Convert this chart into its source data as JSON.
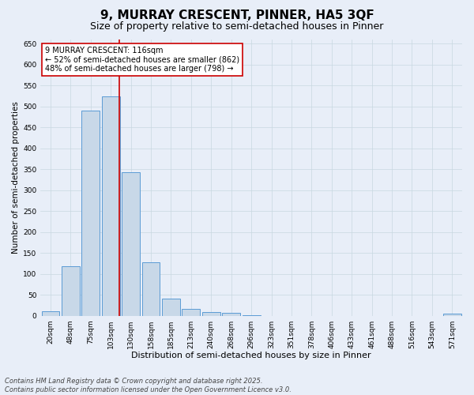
{
  "title": "9, MURRAY CRESCENT, PINNER, HA5 3QF",
  "subtitle": "Size of property relative to semi-detached houses in Pinner",
  "xlabel": "Distribution of semi-detached houses by size in Pinner",
  "ylabel": "Number of semi-detached properties",
  "categories": [
    "20sqm",
    "48sqm",
    "75sqm",
    "103sqm",
    "130sqm",
    "158sqm",
    "185sqm",
    "213sqm",
    "240sqm",
    "268sqm",
    "296sqm",
    "323sqm",
    "351sqm",
    "378sqm",
    "406sqm",
    "433sqm",
    "461sqm",
    "488sqm",
    "516sqm",
    "543sqm",
    "571sqm"
  ],
  "values": [
    10,
    118,
    490,
    525,
    343,
    128,
    40,
    16,
    8,
    7,
    2,
    0,
    0,
    0,
    0,
    0,
    0,
    0,
    0,
    0,
    4
  ],
  "bar_color": "#c8d8e8",
  "bar_edge_color": "#5b9bd5",
  "grid_color": "#c8d8e0",
  "background_color": "#e8eef8",
  "fig_background_color": "#e8eef8",
  "annotation_text": "9 MURRAY CRESCENT: 116sqm\n← 52% of semi-detached houses are smaller (862)\n48% of semi-detached houses are larger (798) →",
  "vline_x": 3.42,
  "vline_color": "#cc0000",
  "annotation_box_facecolor": "#ffffff",
  "annotation_box_edgecolor": "#cc0000",
  "footer_text": "Contains HM Land Registry data © Crown copyright and database right 2025.\nContains public sector information licensed under the Open Government Licence v3.0.",
  "ylim": [
    0,
    660
  ],
  "yticks": [
    0,
    50,
    100,
    150,
    200,
    250,
    300,
    350,
    400,
    450,
    500,
    550,
    600,
    650
  ],
  "title_fontsize": 11,
  "subtitle_fontsize": 9,
  "xlabel_fontsize": 8,
  "ylabel_fontsize": 7.5,
  "tick_fontsize": 6.5,
  "annotation_fontsize": 7,
  "footer_fontsize": 6
}
